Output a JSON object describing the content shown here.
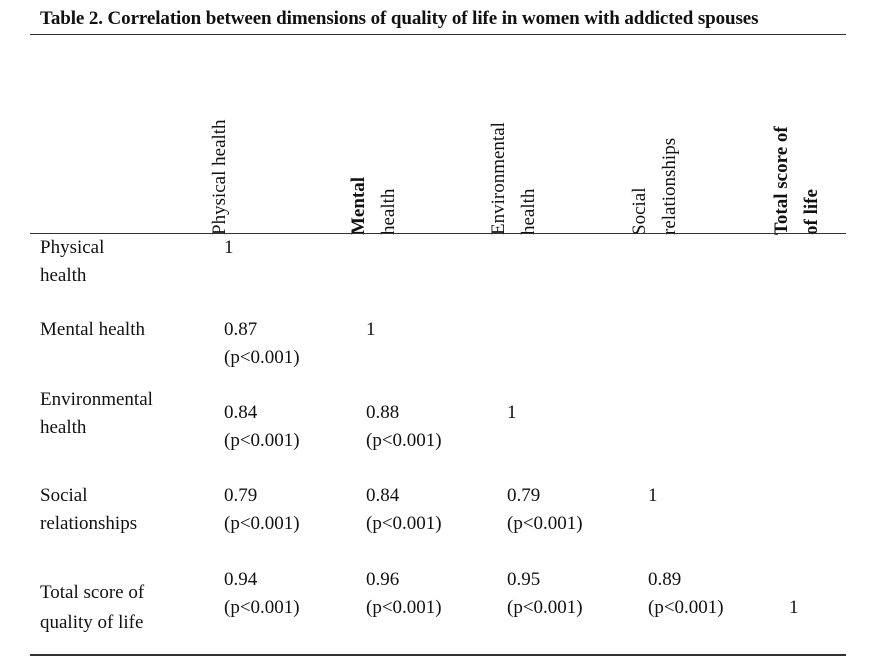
{
  "title": "Table 2. Correlation between dimensions of quality of life in women with addicted spouses",
  "columns": [
    {
      "line1": "Physical health",
      "line2": ""
    },
    {
      "line1": "Mental",
      "line2": "health"
    },
    {
      "line1": "Environmental",
      "line2": "health"
    },
    {
      "line1": "Social",
      "line2": "relationships"
    },
    {
      "line1": "Total score of",
      "line2": "of life"
    }
  ],
  "rows": [
    {
      "label_line1": "Physical",
      "label_line2": "health",
      "cells": [
        {
          "r": "1",
          "p": ""
        }
      ]
    },
    {
      "label_line1": "Mental health",
      "label_line2": "",
      "cells": [
        {
          "r": "0.87",
          "p": "(p<0.001)"
        },
        {
          "r": "1",
          "p": ""
        }
      ]
    },
    {
      "label_line1": "Environmental",
      "label_line2": "health",
      "cells": [
        {
          "r": "0.84",
          "p": "(p<0.001)"
        },
        {
          "r": "0.88",
          "p": "(p<0.001)"
        },
        {
          "r": "1",
          "p": ""
        }
      ]
    },
    {
      "label_line1": "Social",
      "label_line2": "relationships",
      "cells": [
        {
          "r": "0.79",
          "p": "(p<0.001)"
        },
        {
          "r": "0.84",
          "p": "(p<0.001)"
        },
        {
          "r": "0.79",
          "p": "(p<0.001)"
        },
        {
          "r": "1",
          "p": ""
        }
      ]
    },
    {
      "label_line1": "Total score of",
      "label_line2": "quality of life",
      "cells": [
        {
          "r": "0.94",
          "p": "(p<0.001)"
        },
        {
          "r": "0.96",
          "p": "(p<0.001)"
        },
        {
          "r": "0.95",
          "p": "(p<0.001)"
        },
        {
          "r": "0.89",
          "p": "(p<0.001)"
        },
        {
          "r": "1",
          "p": ""
        }
      ]
    }
  ]
}
